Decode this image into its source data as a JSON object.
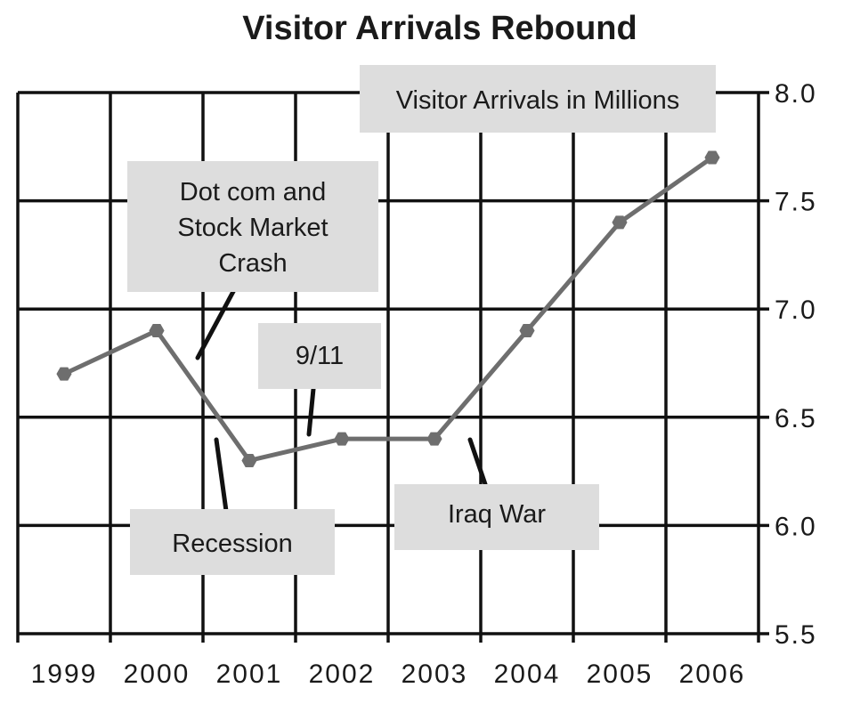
{
  "chart_data": {
    "type": "line",
    "title": "Visitor Arrivals Rebound",
    "x": [
      "1999",
      "2000",
      "2001",
      "2002",
      "2003",
      "2004",
      "2005",
      "2006"
    ],
    "series": [
      {
        "name": "Visitor Arrivals in Millions",
        "values": [
          6.7,
          6.9,
          6.3,
          6.4,
          6.4,
          6.9,
          7.4,
          7.7
        ],
        "color": "#6e6e6e"
      }
    ],
    "ylim": [
      5.5,
      8.0
    ],
    "yticks": [
      "5.5",
      "6.0",
      "6.5",
      "7.0",
      "7.5",
      "8.0"
    ],
    "y_axis_position": "right",
    "grid": true,
    "annotations": [
      {
        "id": "series-label",
        "lines": [
          "Visitor Arrivals in Millions"
        ]
      },
      {
        "id": "dotcom",
        "lines": [
          "Dot com and",
          "Stock Market",
          "Crash"
        ]
      },
      {
        "id": "nine-eleven",
        "lines": [
          "9/11"
        ]
      },
      {
        "id": "recession",
        "lines": [
          "Recession"
        ]
      },
      {
        "id": "iraq-war",
        "lines": [
          "Iraq War"
        ]
      }
    ],
    "box_color": "#dddddd",
    "grid_color": "#111111"
  }
}
